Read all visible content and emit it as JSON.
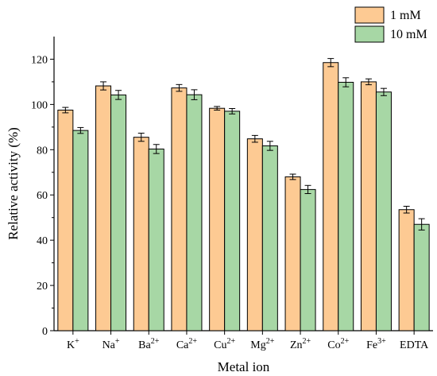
{
  "chart_data": {
    "type": "bar",
    "categories": [
      {
        "base": "K",
        "sup": "+"
      },
      {
        "base": "Na",
        "sup": "+"
      },
      {
        "base": "Ba",
        "sup": "2+"
      },
      {
        "base": "Ca",
        "sup": "2+"
      },
      {
        "base": "Cu",
        "sup": "2+"
      },
      {
        "base": "Mg",
        "sup": "2+"
      },
      {
        "base": "Zn",
        "sup": "2+"
      },
      {
        "base": "Co",
        "sup": "2+"
      },
      {
        "base": "Fe",
        "sup": "3+"
      },
      {
        "base": "EDTA",
        "sup": ""
      }
    ],
    "series": [
      {
        "name": "1 mM",
        "color": "#FDCA93",
        "values": [
          97.5,
          108.2,
          85.5,
          107.3,
          98.3,
          84.8,
          68.0,
          118.5,
          110.0,
          53.5
        ],
        "errors": [
          1.2,
          1.8,
          1.8,
          1.5,
          0.8,
          1.5,
          1.2,
          1.8,
          1.3,
          1.5
        ]
      },
      {
        "name": "10 mM",
        "color": "#A7D7A5",
        "values": [
          88.5,
          104.2,
          80.3,
          104.3,
          97.0,
          81.7,
          62.4,
          109.8,
          105.5,
          47.0
        ],
        "errors": [
          1.3,
          2.0,
          2.0,
          2.2,
          1.2,
          2.0,
          1.8,
          2.0,
          1.6,
          2.5
        ]
      }
    ],
    "xlabel": "Metal ion",
    "ylabel": "Relative activity (%)",
    "ylim": [
      0,
      130
    ],
    "yticks": [
      0,
      20,
      40,
      60,
      80,
      100,
      120
    ],
    "grid": false,
    "legend_position": "top-right"
  }
}
